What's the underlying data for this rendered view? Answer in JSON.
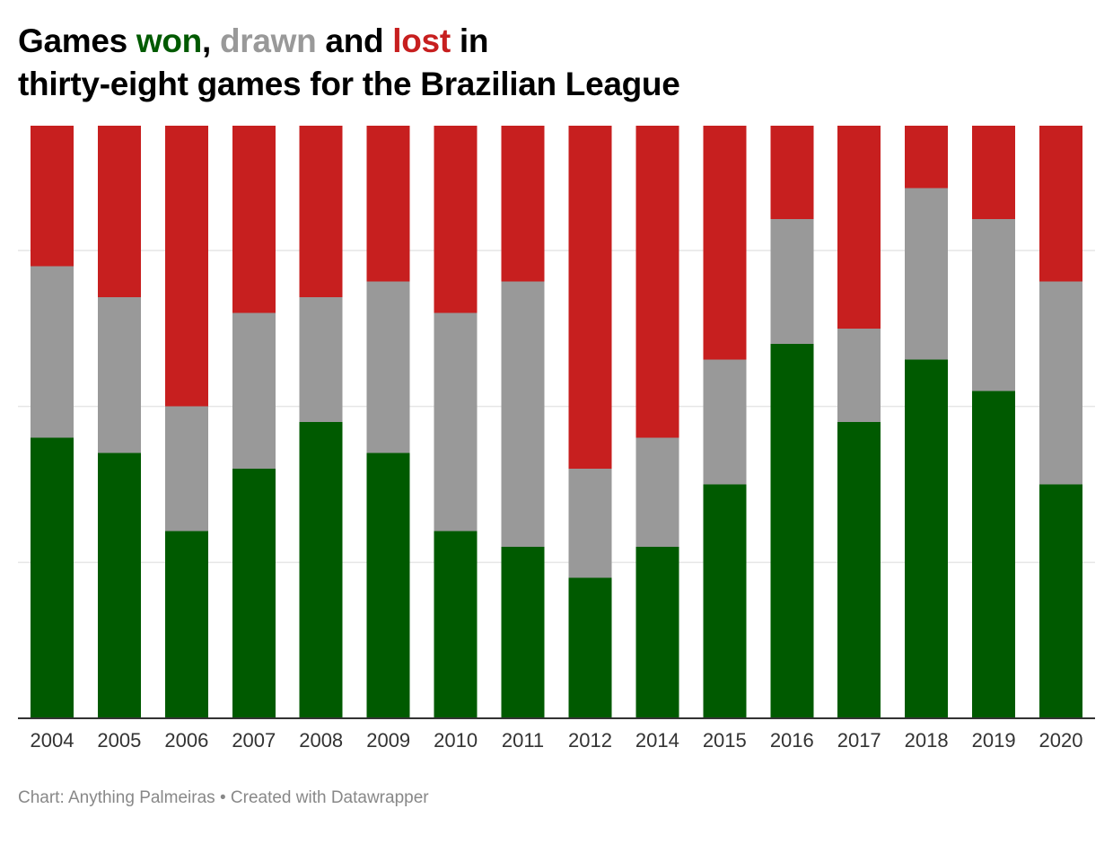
{
  "title": {
    "part1": "Games ",
    "won": "won",
    "sep1": ", ",
    "drawn": "drawn",
    "sep2": " and ",
    "lost": "lost",
    "part2": " in",
    "line2": "thirty-eight games for the Brazilian League"
  },
  "footer": {
    "source": "Chart: Anything Palmeiras",
    "separator": " • ",
    "credit": "Created with Datawrapper"
  },
  "colors": {
    "won": "#005a00",
    "drawn": "#999999",
    "lost": "#c71f1f",
    "grid": "#e6e6e6",
    "axis": "#333333"
  },
  "chart_data": {
    "type": "bar",
    "stacked": true,
    "title": "Games won, drawn and lost in thirty-eight games for the Brazilian League",
    "xlabel": "",
    "ylabel": "",
    "ylim": [
      0,
      38
    ],
    "grid": true,
    "gridlines": [
      10,
      20,
      30
    ],
    "categories": [
      "2004",
      "2005",
      "2006",
      "2007",
      "2008",
      "2009",
      "2010",
      "2011",
      "2012",
      "2014",
      "2015",
      "2016",
      "2017",
      "2018",
      "2019",
      "2020"
    ],
    "series": [
      {
        "name": "won",
        "color": "#005a00",
        "values": [
          18,
          17,
          12,
          16,
          19,
          17,
          12,
          11,
          9,
          11,
          15,
          24,
          19,
          23,
          21,
          15
        ]
      },
      {
        "name": "drawn",
        "color": "#999999",
        "values": [
          11,
          10,
          8,
          10,
          8,
          11,
          14,
          17,
          7,
          7,
          8,
          8,
          6,
          11,
          11,
          13
        ]
      },
      {
        "name": "lost",
        "color": "#c71f1f",
        "values": [
          9,
          11,
          18,
          12,
          11,
          10,
          12,
          10,
          22,
          20,
          15,
          6,
          13,
          4,
          6,
          10
        ]
      }
    ]
  }
}
